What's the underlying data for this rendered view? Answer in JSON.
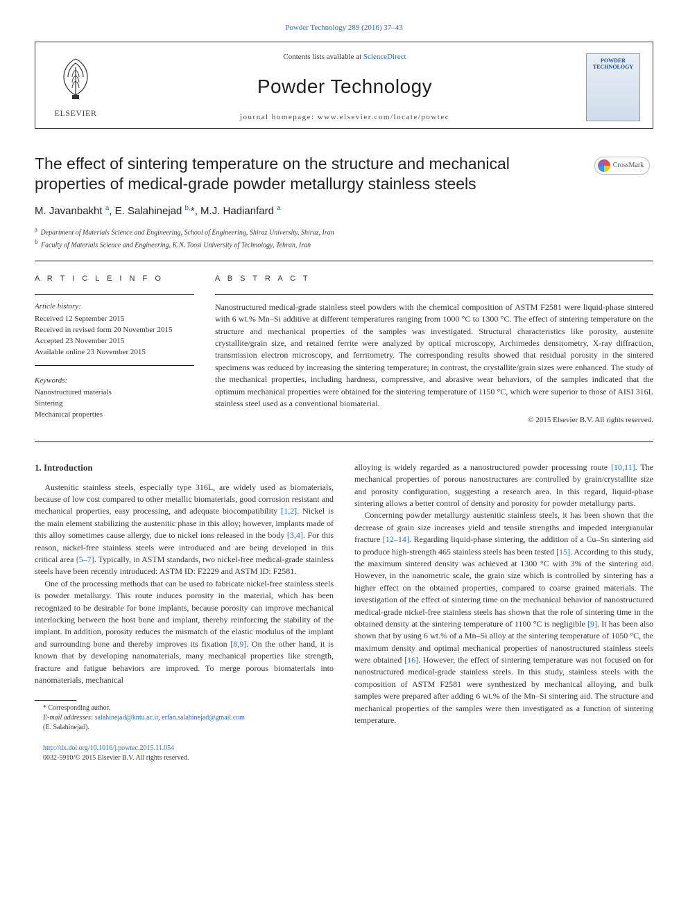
{
  "journal": {
    "citation_line": "Powder Technology 289 (2016) 37–43",
    "contents_prefix": "Contents lists available at ",
    "contents_link": "ScienceDirect",
    "name": "Powder Technology",
    "homepage_label": "journal homepage: www.elsevier.com/locate/powtec",
    "publisher": "ELSEVIER",
    "cover_label": "POWDER TECHNOLOGY"
  },
  "crossmark": {
    "label": "CrossMark"
  },
  "article": {
    "title": "The effect of sintering temperature on the structure and mechanical properties of medical-grade powder metallurgy stainless steels",
    "authors_html": "M. Javanbakht <sup class=\"aff-sup\">a</sup>, E. Salahinejad <sup class=\"aff-sup\">b,</sup>*, M.J. Hadianfard <sup class=\"aff-sup\">a</sup>",
    "affiliation_a": "Department of Materials Science and Engineering, School of Engineering, Shiraz University, Shiraz, Iran",
    "affiliation_b": "Faculty of Materials Science and Engineering, K.N. Toosi University of Technology, Tehran, Iran"
  },
  "info": {
    "section_label": "A R T I C L E   I N F O",
    "history_label": "Article history:",
    "received": "Received 12 September 2015",
    "revised": "Received in revised form 20 November 2015",
    "accepted": "Accepted 23 November 2015",
    "online": "Available online 23 November 2015",
    "keywords_label": "Keywords:",
    "kw1": "Nanostructured materials",
    "kw2": "Sintering",
    "kw3": "Mechanical properties"
  },
  "abstract": {
    "section_label": "A B S T R A C T",
    "text": "Nanostructured medical-grade stainless steel powders with the chemical composition of ASTM F2581 were liquid-phase sintered with 6 wt.% Mn–Si additive at different temperatures ranging from 1000 °C to 1300 °C. The effect of sintering temperature on the structure and mechanical properties of the samples was investigated. Structural characteristics like porosity, austenite crystallite/grain size, and retained ferrite were analyzed by optical microscopy, Archimedes densitometry, X-ray diffraction, transmission electron microscopy, and ferritometry. The corresponding results showed that residual porosity in the sintered specimens was reduced by increasing the sintering temperature; in contrast, the crystallite/grain sizes were enhanced. The study of the mechanical properties, including hardness, compressive, and abrasive wear behaviors, of the samples indicated that the optimum mechanical properties were obtained for the sintering temperature of 1150 °C, which were superior to those of AISI 316L stainless steel used as a conventional biomaterial.",
    "copyright": "© 2015 Elsevier B.V. All rights reserved."
  },
  "body": {
    "heading1": "1. Introduction",
    "p1": "Austenitic stainless steels, especially type 316L, are widely used as biomaterials, because of low cost compared to other metallic biomaterials, good corrosion resistant and mechanical properties, easy processing, and adequate biocompatibility [1,2]. Nickel is the main element stabilizing the austenitic phase in this alloy; however, implants made of this alloy sometimes cause allergy, due to nickel ions released in the body [3,4]. For this reason, nickel-free stainless steels were introduced and are being developed in this critical area [5–7]. Typically, in ASTM standards, two nickel-free medical-grade stainless steels have been recently introduced: ASTM ID: F2229 and ASTM ID: F2581.",
    "p2": "One of the processing methods that can be used to fabricate nickel-free stainless steels is powder metallurgy. This route induces porosity in the material, which has been recognized to be desirable for bone implants, because porosity can improve mechanical interlocking between the host bone and implant, thereby reinforcing the stability of the implant. In addition, porosity reduces the mismatch of the elastic modulus of the implant and surrounding bone and thereby improves its fixation [8,9]. On the other hand, it is known that by developing nanomaterials, many mechanical properties like strength, fracture and fatigue behaviors are improved. To merge porous biomaterials into nanomaterials, mechanical",
    "p3": "alloying is widely regarded as a nanostructured powder processing route [10,11]. The mechanical properties of porous nanostructures are controlled by grain/crystallite size and porosity configuration, suggesting a research area. In this regard, liquid-phase sintering allows a better control of density and porosity for powder metallurgy parts.",
    "p4": "Concerning powder metallurgy austenitic stainless steels, it has been shown that the decrease of grain size increases yield and tensile strengths and impeded intergranular fracture [12–14]. Regarding liquid-phase sintering, the addition of a Cu–Sn sintering aid to produce high-strength 465 stainless steels has been tested [15]. According to this study, the maximum sintered density was achieved at 1300 °C with 3% of the sintering aid. However, in the nanometric scale, the grain size which is controlled by sintering has a higher effect on the obtained properties, compared to coarse grained materials. The investigation of the effect of sintering time on the mechanical behavior of nanostructured medical-grade nickel-free stainless steels has shown that the role of sintering time in the obtained density at the sintering temperature of 1100 °C is negligible [9]. It has been also shown that by using 6 wt.% of a Mn–Si alloy at the sintering temperature of 1050 °C, the maximum density and optimal mechanical properties of nanostructured stainless steels were obtained [16]. However, the effect of sintering temperature was not focused on for nanostructured medical-grade stainless steels. In this study, stainless steels with the composition of ASTM F2581 were synthesized by mechanical alloying, and bulk samples were prepared after adding 6 wt.% of the Mn–Si sintering aid. The structure and mechanical properties of the samples were then investigated as a function of sintering temperature."
  },
  "footnotes": {
    "corresponding": "* Corresponding author.",
    "email_label": "E-mail addresses:",
    "email1": "salahinejad@kntu.ac.ir",
    "email2": "erfan.salahinejad@gmail.com",
    "email_name": "(E. Salahinejad)."
  },
  "footer": {
    "doi": "http://dx.doi.org/10.1016/j.powtec.2015.11.054",
    "issn_line": "0032-5910/© 2015 Elsevier B.V. All rights reserved."
  },
  "colors": {
    "link": "#2a6bb8",
    "text": "#333333",
    "rule": "#000000"
  }
}
